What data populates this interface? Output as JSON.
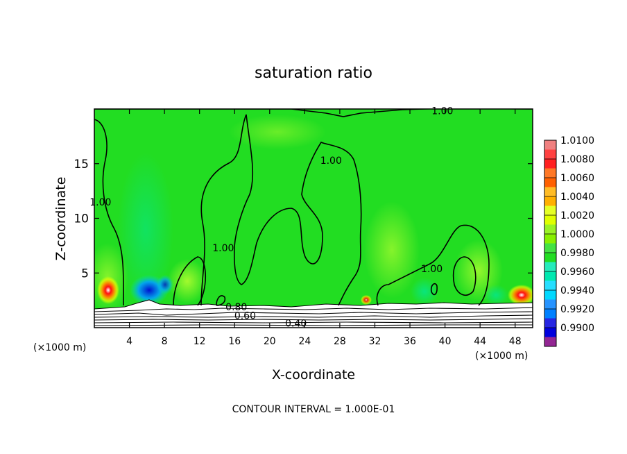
{
  "chart_data": {
    "type": "heatmap",
    "title": "saturation ratio",
    "xlabel": "X-coordinate",
    "ylabel": "Z-coordinate",
    "x_unit_label": "(×1000 m)",
    "x_unit_label_right": "(×1000 m)",
    "xlim": [
      0,
      50
    ],
    "ylim": [
      0,
      20
    ],
    "x_ticks": [
      4,
      8,
      12,
      16,
      20,
      24,
      28,
      32,
      36,
      40,
      44,
      48
    ],
    "y_ticks": [
      5,
      10,
      15
    ],
    "footer": "CONTOUR INTERVAL = 1.000E-01",
    "colorbar": {
      "levels": [
        {
          "value": "1.0100",
          "color": "#f08080"
        },
        {
          "value": "1.0080",
          "color": "#ff2020"
        },
        {
          "value": "1.0060",
          "color": "#ff6000"
        },
        {
          "value": "1.0040",
          "color": "#ffb000"
        },
        {
          "value": "1.0020",
          "color": "#e0ff00"
        },
        {
          "value": "1.0000",
          "color": "#88f000"
        },
        {
          "value": "0.9980",
          "color": "#22dd22"
        },
        {
          "value": "0.9960",
          "color": "#00e8b0"
        },
        {
          "value": "0.9940",
          "color": "#00d8ff"
        },
        {
          "value": "0.9920",
          "color": "#0080ff"
        },
        {
          "value": "0.9900",
          "color": "#0000dd"
        }
      ],
      "bottom_color": "#800080"
    },
    "contour_labels": [
      {
        "text": "1.00",
        "x": 39.7,
        "z": 19.85
      },
      {
        "text": "1.00",
        "x": 27.0,
        "z": 15.3
      },
      {
        "text": "1.00",
        "x": 0.7,
        "z": 11.5
      },
      {
        "text": "1.00",
        "x": 14.7,
        "z": 7.3
      },
      {
        "text": "1.00",
        "x": 38.5,
        "z": 5.4
      },
      {
        "text": "0.80",
        "x": 16.2,
        "z": 1.9
      },
      {
        "text": "0.60",
        "x": 17.2,
        "z": 1.1
      },
      {
        "text": "0.40",
        "x": 23.0,
        "z": 0.4
      }
    ]
  }
}
